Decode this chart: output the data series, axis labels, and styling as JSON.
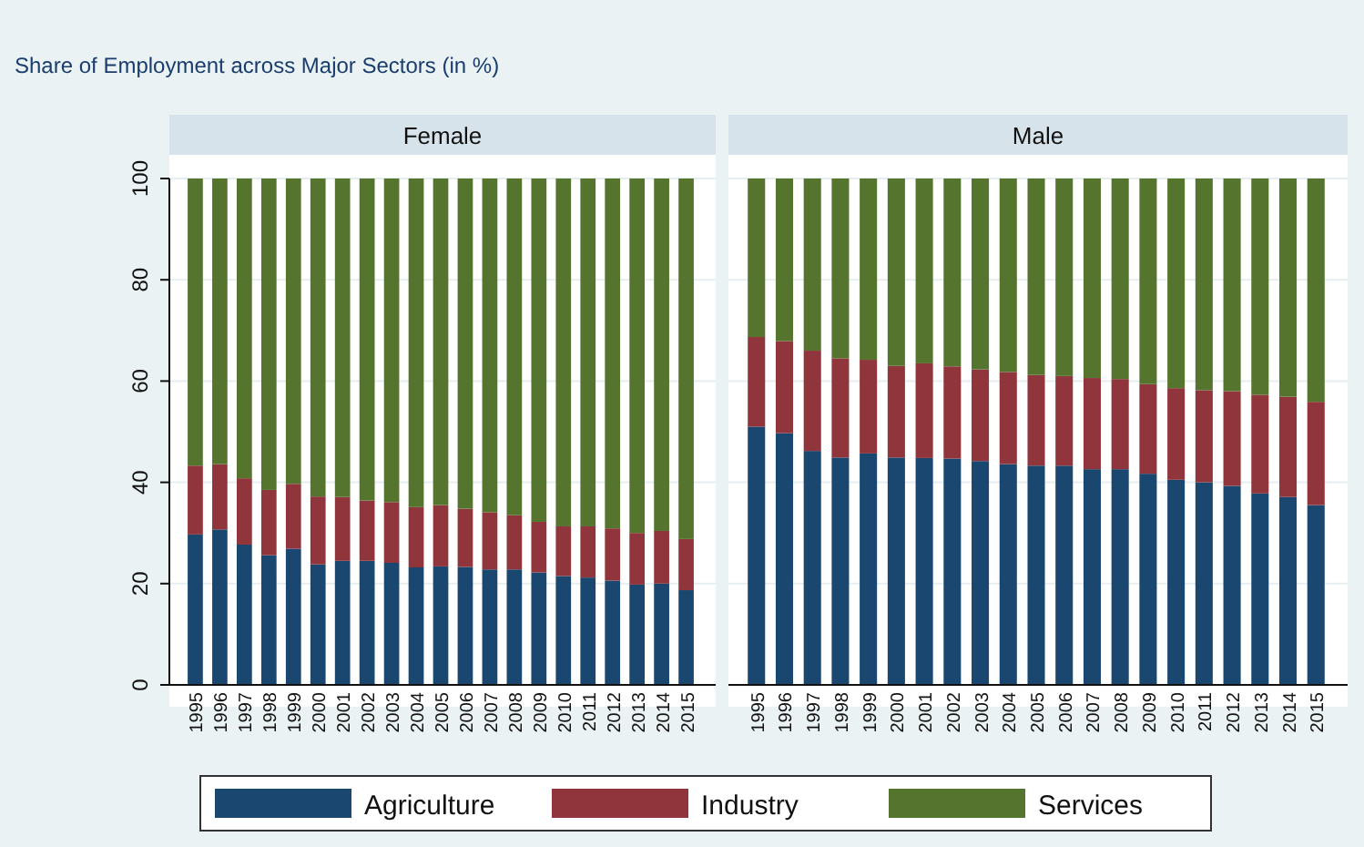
{
  "chart_data": [
    {
      "type": "bar",
      "stacked": true,
      "title": "Share of Employment across Major Sectors (in %)",
      "subtitle": "Female",
      "categories": [
        "1995",
        "1996",
        "1997",
        "1998",
        "1999",
        "2000",
        "2001",
        "2002",
        "2003",
        "2004",
        "2005",
        "2006",
        "2007",
        "2008",
        "2009",
        "2010",
        "2011",
        "2012",
        "2013",
        "2014",
        "2015"
      ],
      "ylim": [
        0,
        100
      ],
      "yticks": [
        0,
        20,
        40,
        60,
        80,
        100
      ],
      "grid": "y",
      "legend": "bottom",
      "series": [
        {
          "name": "Agriculture",
          "color": "#1a476f",
          "values": [
            29.7,
            30.7,
            27.7,
            25.6,
            26.9,
            23.8,
            24.5,
            24.5,
            24.1,
            23.2,
            23.4,
            23.3,
            22.8,
            22.8,
            22.2,
            21.5,
            21.2,
            20.6,
            19.8,
            20.0,
            18.7
          ]
        },
        {
          "name": "Industry",
          "color": "#90353b",
          "values": [
            13.6,
            12.9,
            13.1,
            12.9,
            12.8,
            13.4,
            12.6,
            11.9,
            12.0,
            11.9,
            12.1,
            11.5,
            11.3,
            10.7,
            10.0,
            9.8,
            10.1,
            10.3,
            10.2,
            10.4,
            10.1
          ]
        },
        {
          "name": "Services",
          "color": "#55752f",
          "values": [
            56.7,
            56.4,
            59.2,
            61.5,
            60.3,
            62.8,
            62.9,
            63.6,
            63.9,
            64.9,
            64.5,
            65.2,
            65.9,
            66.5,
            67.8,
            68.7,
            68.7,
            69.1,
            70.0,
            69.6,
            71.2
          ]
        }
      ]
    },
    {
      "type": "bar",
      "stacked": true,
      "subtitle": "Male",
      "categories": [
        "1995",
        "1996",
        "1997",
        "1998",
        "1999",
        "2000",
        "2001",
        "2002",
        "2003",
        "2004",
        "2005",
        "2006",
        "2007",
        "2008",
        "2009",
        "2010",
        "2011",
        "2012",
        "2013",
        "2014",
        "2015"
      ],
      "ylim": [
        0,
        100
      ],
      "yticks": [
        0,
        20,
        40,
        60,
        80,
        100
      ],
      "grid": "y",
      "tick_labels": "x",
      "series": [
        {
          "color": "#1a476f",
          "values": [
            51.0,
            49.7,
            46.2,
            44.9,
            45.7,
            44.9,
            44.8,
            44.7,
            44.2,
            43.6,
            43.3,
            43.3,
            42.6,
            42.6,
            41.7,
            40.5,
            40.0,
            39.3,
            37.8,
            37.1,
            35.5
          ]
        },
        {
          "color": "#90353b",
          "values": [
            17.7,
            18.2,
            19.8,
            19.6,
            18.5,
            18.1,
            18.7,
            18.2,
            18.1,
            18.2,
            17.9,
            17.7,
            18.0,
            17.8,
            17.7,
            18.1,
            18.2,
            18.7,
            19.5,
            19.8,
            20.4
          ]
        },
        {
          "color": "#55752f",
          "values": [
            31.3,
            32.1,
            34.0,
            35.5,
            35.8,
            37.0,
            36.5,
            37.1,
            37.7,
            38.2,
            38.8,
            39.0,
            39.4,
            39.6,
            40.6,
            41.4,
            41.8,
            42.0,
            42.7,
            43.1,
            44.1
          ]
        }
      ]
    }
  ]
}
